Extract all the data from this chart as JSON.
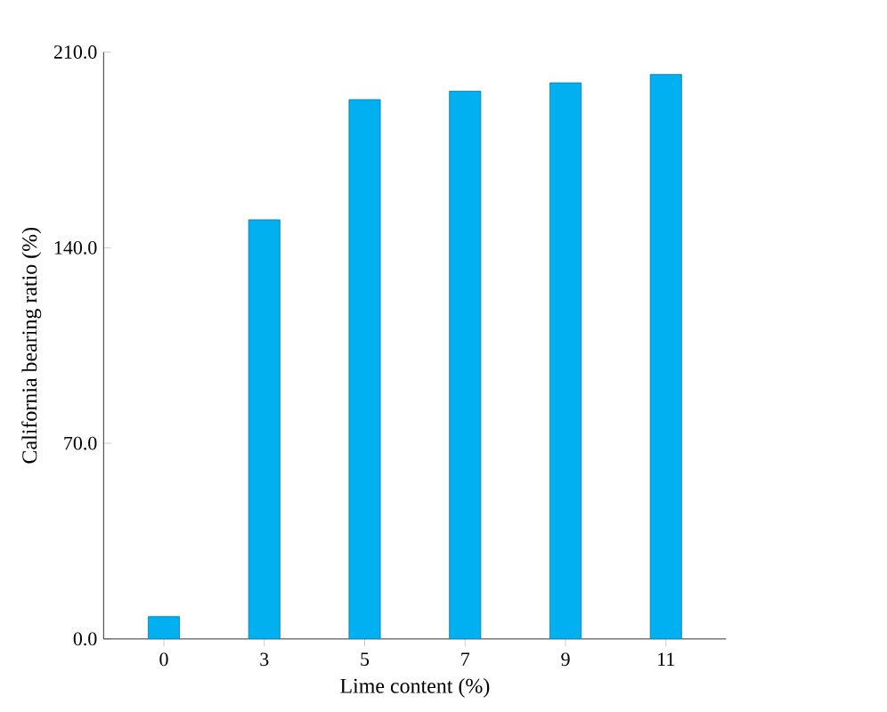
{
  "chart_data": {
    "type": "bar",
    "xlabel": "Lime content (%)",
    "ylabel": "California bearing ratio (%)",
    "categories": [
      "0",
      "3",
      "5",
      "7",
      "9",
      "11"
    ],
    "values": [
      8,
      150,
      193,
      196,
      199,
      202
    ],
    "color": "#00b0f0",
    "ylim": [
      0,
      210
    ],
    "yticks": [
      {
        "value": 0,
        "label": "0.0"
      },
      {
        "value": 70,
        "label": "70.0"
      },
      {
        "value": 140,
        "label": "140.0"
      },
      {
        "value": 210,
        "label": "210.0"
      }
    ]
  }
}
